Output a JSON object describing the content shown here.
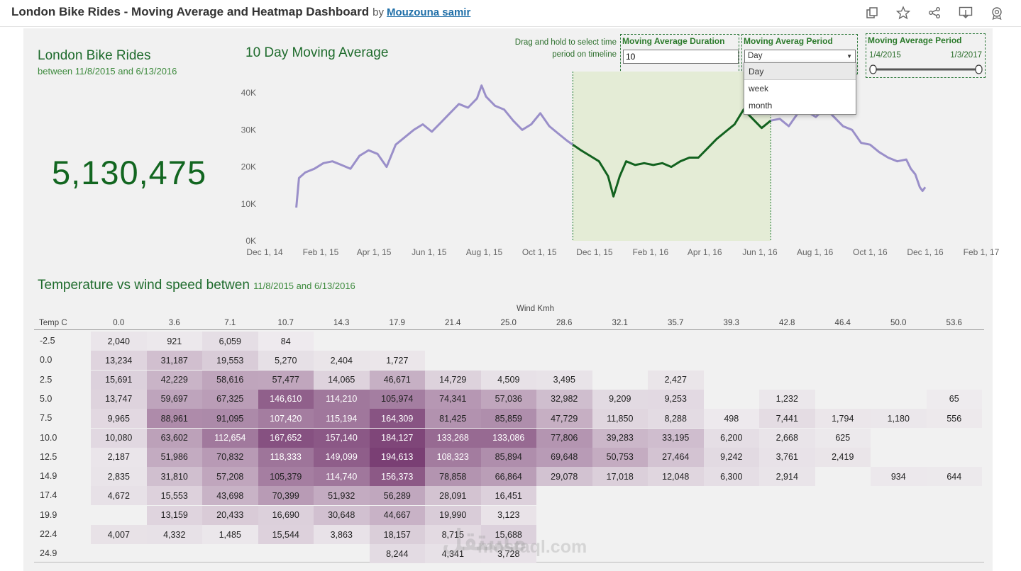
{
  "header": {
    "title": "London Bike Rides - Moving Average and Heatmap Dashboard",
    "by": "by",
    "author": "Mouzouna samir",
    "icons": [
      "copy-icon",
      "star-icon",
      "share-icon",
      "download-icon",
      "badge-icon"
    ]
  },
  "kpi": {
    "title": "London Bike Rides",
    "subtitle": "between 11/8/2015 and 6/13/2016",
    "value": "5,130,475"
  },
  "chart_title": "10 Day Moving Average",
  "drag_hint": "Drag and hold to select time period on timeline",
  "controls": {
    "duration": {
      "label": "Moving Average Duration",
      "value": "10"
    },
    "period": {
      "label": "Moving Averag Period",
      "value": "Day",
      "options": [
        "Day",
        "week",
        "month"
      ]
    },
    "range": {
      "label": "Moving Average Period",
      "start": "1/4/2015",
      "end": "1/3/2017"
    }
  },
  "chart_data": {
    "type": "line",
    "title": "10 Day Moving Average",
    "xlabel": "",
    "ylabel": "",
    "x_ticks": [
      "Dec 1, 14",
      "Feb 1, 15",
      "Apr 1, 15",
      "Jun 1, 15",
      "Aug 1, 15",
      "Oct 1, 15",
      "Dec 1, 15",
      "Feb 1, 16",
      "Apr 1, 16",
      "Jun 1, 16",
      "Aug 1, 16",
      "Oct 1, 16",
      "Dec 1, 16",
      "Feb 1, 17"
    ],
    "y_ticks": [
      "0K",
      "10K",
      "20K",
      "30K",
      "40K"
    ],
    "ylim": [
      0,
      45000
    ],
    "xlim_days": [
      0,
      793
    ],
    "highlight_range_days": [
      341,
      560
    ],
    "series": [
      {
        "name": "10 Day Moving Average (rides)",
        "points": [
          [
            35,
            9000
          ],
          [
            38,
            17000
          ],
          [
            45,
            18500
          ],
          [
            55,
            19500
          ],
          [
            65,
            21000
          ],
          [
            75,
            21500
          ],
          [
            85,
            20500
          ],
          [
            95,
            19500
          ],
          [
            105,
            23000
          ],
          [
            115,
            24500
          ],
          [
            125,
            23500
          ],
          [
            135,
            20000
          ],
          [
            145,
            26000
          ],
          [
            155,
            28000
          ],
          [
            165,
            30000
          ],
          [
            175,
            31500
          ],
          [
            185,
            29500
          ],
          [
            195,
            32000
          ],
          [
            205,
            34500
          ],
          [
            215,
            37000
          ],
          [
            225,
            36000
          ],
          [
            235,
            38500
          ],
          [
            240,
            42000
          ],
          [
            245,
            39000
          ],
          [
            255,
            36500
          ],
          [
            265,
            35500
          ],
          [
            275,
            32500
          ],
          [
            285,
            30000
          ],
          [
            295,
            31500
          ],
          [
            305,
            34500
          ],
          [
            315,
            31000
          ],
          [
            325,
            29000
          ],
          [
            335,
            27000
          ],
          [
            341,
            26000
          ],
          [
            350,
            24500
          ],
          [
            360,
            23000
          ],
          [
            370,
            21500
          ],
          [
            380,
            17500
          ],
          [
            386,
            12000
          ],
          [
            393,
            17500
          ],
          [
            400,
            21500
          ],
          [
            410,
            20500
          ],
          [
            420,
            21000
          ],
          [
            430,
            20500
          ],
          [
            440,
            21000
          ],
          [
            450,
            20000
          ],
          [
            460,
            21500
          ],
          [
            470,
            22500
          ],
          [
            480,
            22500
          ],
          [
            490,
            25000
          ],
          [
            500,
            27500
          ],
          [
            510,
            29500
          ],
          [
            520,
            31500
          ],
          [
            530,
            35500
          ],
          [
            540,
            33000
          ],
          [
            550,
            30500
          ],
          [
            560,
            32500
          ],
          [
            570,
            33000
          ],
          [
            580,
            31000
          ],
          [
            590,
            34500
          ],
          [
            600,
            35000
          ],
          [
            610,
            33500
          ],
          [
            620,
            36000
          ],
          [
            630,
            33500
          ],
          [
            640,
            31000
          ],
          [
            650,
            30000
          ],
          [
            660,
            26500
          ],
          [
            670,
            26000
          ],
          [
            680,
            24000
          ],
          [
            690,
            22500
          ],
          [
            700,
            21500
          ],
          [
            710,
            22000
          ],
          [
            715,
            19500
          ],
          [
            720,
            18000
          ],
          [
            725,
            14500
          ],
          [
            728,
            13500
          ],
          [
            731,
            14500
          ]
        ]
      }
    ]
  },
  "heatmap": {
    "title": "Temperature vs wind speed betwen",
    "subtitle": "11/8/2015 and 6/13/2016",
    "x_axis_title": "Wind Kmh",
    "y_axis_title": "Temp C",
    "wind": [
      "0.0",
      "3.6",
      "7.1",
      "10.7",
      "14.3",
      "17.9",
      "21.4",
      "25.0",
      "28.6",
      "32.1",
      "35.7",
      "39.3",
      "42.8",
      "46.4",
      "50.0",
      "53.6"
    ],
    "temps": [
      "-2.5",
      "0.0",
      "2.5",
      "5.0",
      "7.5",
      "10.0",
      "12.5",
      "14.9",
      "17.4",
      "19.9",
      "22.4",
      "24.9"
    ],
    "values": [
      [
        "2,040",
        "921",
        "6,059",
        "84",
        "",
        "",
        "",
        "",
        "",
        "",
        "",
        "",
        "",
        "",
        "",
        ""
      ],
      [
        "13,234",
        "31,187",
        "19,553",
        "5,270",
        "2,404",
        "1,727",
        "",
        "",
        "",
        "",
        "",
        "",
        "",
        "",
        "",
        ""
      ],
      [
        "15,691",
        "42,229",
        "58,616",
        "57,477",
        "14,065",
        "46,671",
        "14,729",
        "4,509",
        "3,495",
        "",
        "2,427",
        "",
        "",
        "",
        "",
        ""
      ],
      [
        "13,747",
        "59,697",
        "67,325",
        "146,610",
        "114,210",
        "105,974",
        "74,341",
        "57,036",
        "32,982",
        "9,209",
        "9,253",
        "",
        "1,232",
        "",
        "",
        "65"
      ],
      [
        "9,965",
        "88,961",
        "91,095",
        "107,420",
        "115,194",
        "164,309",
        "81,425",
        "85,859",
        "47,729",
        "11,850",
        "8,288",
        "498",
        "7,441",
        "1,794",
        "1,180",
        "556"
      ],
      [
        "10,080",
        "63,602",
        "112,654",
        "167,652",
        "157,140",
        "184,127",
        "133,268",
        "133,086",
        "77,806",
        "39,283",
        "33,195",
        "6,200",
        "2,668",
        "625",
        "",
        ""
      ],
      [
        "2,187",
        "51,986",
        "70,832",
        "118,333",
        "149,099",
        "194,613",
        "108,323",
        "85,894",
        "69,648",
        "50,753",
        "27,464",
        "9,242",
        "3,761",
        "2,419",
        "",
        ""
      ],
      [
        "2,835",
        "31,810",
        "57,208",
        "105,379",
        "114,740",
        "156,373",
        "78,858",
        "66,864",
        "29,078",
        "17,018",
        "12,048",
        "6,300",
        "2,914",
        "",
        "934",
        "644"
      ],
      [
        "4,672",
        "15,553",
        "43,698",
        "70,399",
        "51,932",
        "56,289",
        "28,091",
        "16,451",
        "",
        "",
        "",
        "",
        "",
        "",
        "",
        ""
      ],
      [
        "",
        "13,159",
        "20,433",
        "16,690",
        "30,648",
        "44,667",
        "19,990",
        "3,123",
        "",
        "",
        "",
        "",
        "",
        "",
        "",
        ""
      ],
      [
        "4,007",
        "4,332",
        "1,485",
        "15,544",
        "3,863",
        "18,157",
        "8,715",
        "15,688",
        "",
        "",
        "",
        "",
        "",
        "",
        "",
        ""
      ],
      [
        "",
        "",
        "",
        "",
        "",
        "8,244",
        "4,341",
        "3,728",
        "",
        "",
        "",
        "",
        "",
        "",
        "",
        ""
      ]
    ]
  },
  "colors": {
    "line_base": "#9a8fc9",
    "line_highlight": "#12621f",
    "highlight_fill": "#e4ecd6",
    "heat_low": "#eeebee",
    "heat_high": "#7a3f74",
    "title_green": "#1e6b2c"
  },
  "watermark": {
    "text": "مستقل",
    "sub": "mostaql.com"
  }
}
